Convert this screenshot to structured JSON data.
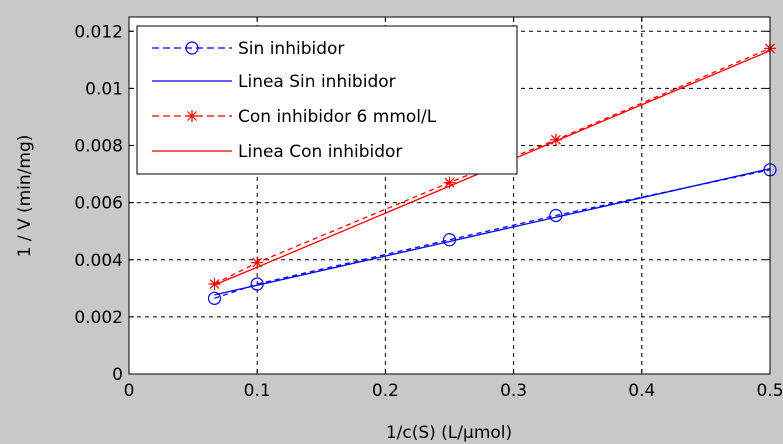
{
  "chart_data": {
    "type": "line",
    "title": "",
    "xlabel": "1/c(S) (L/μmol)",
    "ylabel": "1 / V (min/mg)",
    "xlim": [
      0,
      0.5
    ],
    "ylim": [
      0,
      0.0125
    ],
    "xticks": [
      0,
      0.1,
      0.2,
      0.3,
      0.4,
      0.5
    ],
    "xtick_labels": [
      "0",
      "0.1",
      "0.2",
      "0.3",
      "0.4",
      "0.5"
    ],
    "yticks": [
      0,
      0.002,
      0.004,
      0.006,
      0.008,
      0.01,
      0.012
    ],
    "ytick_labels": [
      "0",
      "0.002",
      "0.004",
      "0.006",
      "0.008",
      "0.01",
      "0.012"
    ],
    "grid": true,
    "legend_position": "top-left",
    "series": [
      {
        "name": "Sin inhibidor",
        "style": "markers-dashed",
        "marker": "circle",
        "color": "#0000ff",
        "x": [
          0.0667,
          0.1,
          0.25,
          0.333,
          0.5
        ],
        "y": [
          0.00265,
          0.00315,
          0.0047,
          0.00555,
          0.00715
        ]
      },
      {
        "name": "Linea Sin inhibidor",
        "style": "solid",
        "color": "#0000ff",
        "x": [
          0.0667,
          0.1,
          0.25,
          0.333,
          0.5
        ],
        "y": [
          0.00277,
          0.00311,
          0.00464,
          0.00549,
          0.00719
        ]
      },
      {
        "name": "Con inhibidor 6 mmol/L",
        "style": "markers-dashed",
        "marker": "asterisk",
        "color": "#ff0000",
        "x": [
          0.0667,
          0.1,
          0.25,
          0.333,
          0.5
        ],
        "y": [
          0.00315,
          0.0039,
          0.0067,
          0.0082,
          0.0114
        ]
      },
      {
        "name": "Linea Con inhibidor",
        "style": "solid",
        "color": "#ff0000",
        "x": [
          0.0667,
          0.1,
          0.25,
          0.333,
          0.5
        ],
        "y": [
          0.00312,
          0.00374,
          0.00658,
          0.00816,
          0.01132
        ]
      }
    ]
  }
}
